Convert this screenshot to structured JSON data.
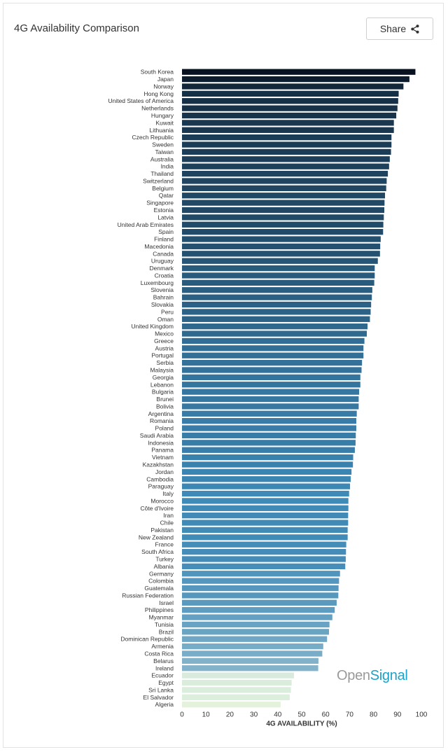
{
  "header": {
    "title": "4G Availability Comparison",
    "share_label": "Share"
  },
  "logo": {
    "part1": "Open",
    "part2": "Signal"
  },
  "chart_data": {
    "type": "bar",
    "orientation": "horizontal",
    "xlabel": "4G AVAILABILITY (%)",
    "xlim": [
      0,
      100
    ],
    "xticks": [
      0,
      10,
      20,
      30,
      40,
      50,
      60,
      70,
      80,
      90,
      100
    ],
    "colors": {
      "high": "#08111f",
      "mid": "#3d88b6",
      "low": "#e6f4dc"
    },
    "categories": [
      "South Korea",
      "Japan",
      "Norway",
      "Hong Kong",
      "United States of America",
      "Netherlands",
      "Hungary",
      "Kuwait",
      "Lithuania",
      "Czech Republic",
      "Sweden",
      "Taiwan",
      "Australia",
      "India",
      "Thailand",
      "Switzerland",
      "Belgium",
      "Qatar",
      "Singapore",
      "Estonia",
      "Latvia",
      "United Arab Emirates",
      "Spain",
      "Finland",
      "Macedonia",
      "Canada",
      "Uruguay",
      "Denmark",
      "Croatia",
      "Luxembourg",
      "Slovenia",
      "Bahrain",
      "Slovakia",
      "Peru",
      "Oman",
      "United Kingdom",
      "Mexico",
      "Greece",
      "Austria",
      "Portugal",
      "Serbia",
      "Malaysia",
      "Georgia",
      "Lebanon",
      "Bulgaria",
      "Brunei",
      "Bolivia",
      "Argentina",
      "Romania",
      "Poland",
      "Saudi Arabia",
      "Indonesia",
      "Panama",
      "Vietnam",
      "Kazakhstan",
      "Jordan",
      "Cambodia",
      "Paraguay",
      "Italy",
      "Morocco",
      "Côte d'Ivoire",
      "Iran",
      "Chile",
      "Pakistan",
      "New Zealand",
      "France",
      "South Africa",
      "Turkey",
      "Albania",
      "Germany",
      "Colombia",
      "Guatemala",
      "Russian Federation",
      "Israel",
      "Philippines",
      "Myanmar",
      "Tunisia",
      "Brazil",
      "Dominican Republic",
      "Armenia",
      "Costa Rica",
      "Belarus",
      "Ireland",
      "Ecuador",
      "Egypt",
      "Sri Lanka",
      "El Salvador",
      "Algeria"
    ],
    "values": [
      97.5,
      95,
      92.5,
      90.5,
      90.3,
      90,
      89.5,
      88.5,
      88.5,
      87.5,
      87.5,
      87.3,
      86.8,
      86.5,
      86,
      85.5,
      85.3,
      84.8,
      84.6,
      84.5,
      84.3,
      84.1,
      84,
      83,
      82.8,
      82.7,
      81.8,
      80.5,
      80.5,
      80.3,
      79.5,
      79.3,
      79,
      78.8,
      78.5,
      77.5,
      77.2,
      76.2,
      75.8,
      75.8,
      75.2,
      75,
      74.5,
      74.5,
      74,
      73.8,
      73.8,
      73,
      72.8,
      72.8,
      72.6,
      72.5,
      72.2,
      71.5,
      71.4,
      70.8,
      70.5,
      70.2,
      69.8,
      69.5,
      69.5,
      69.4,
      69.4,
      69.2,
      69.2,
      68.6,
      68.5,
      68.4,
      68.2,
      66,
      65.6,
      65.4,
      65.3,
      64.6,
      63.8,
      62.8,
      61.6,
      61.4,
      60.6,
      59,
      58.6,
      57,
      56.9,
      46.8,
      45.8,
      45.5,
      45,
      41.2
    ]
  }
}
